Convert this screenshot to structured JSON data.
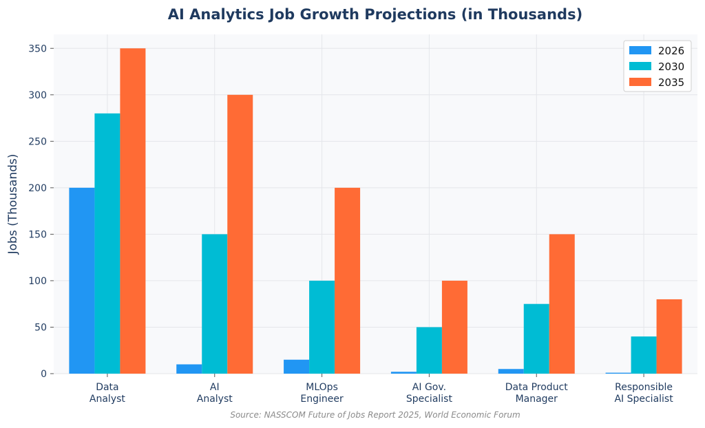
{
  "chart_data": {
    "type": "bar",
    "title": "AI Analytics Job Growth Projections (in Thousands)",
    "xlabel": "",
    "ylabel": "Jobs (Thousands)",
    "ylim": [
      0,
      365
    ],
    "yticks": [
      0,
      50,
      100,
      150,
      200,
      250,
      300,
      350
    ],
    "grid": true,
    "legend_position": "top-right",
    "categories": [
      [
        "Data",
        "Analyst"
      ],
      [
        "AI",
        "Analyst"
      ],
      [
        "MLOps",
        "Engineer"
      ],
      [
        "AI Gov.",
        "Specialist"
      ],
      [
        "Data Product",
        "Manager"
      ],
      [
        "Responsible",
        "AI Specialist"
      ]
    ],
    "series": [
      {
        "name": "2026",
        "color": "#2196f3",
        "values": [
          200,
          10,
          15,
          2,
          5,
          1
        ]
      },
      {
        "name": "2030",
        "color": "#00bcd4",
        "values": [
          280,
          150,
          100,
          50,
          75,
          40
        ]
      },
      {
        "name": "2035",
        "color": "#ff6b35",
        "values": [
          350,
          300,
          200,
          100,
          150,
          80
        ]
      }
    ],
    "source": "Source: NASSCOM Future of Jobs Report 2025, World Economic Forum"
  }
}
